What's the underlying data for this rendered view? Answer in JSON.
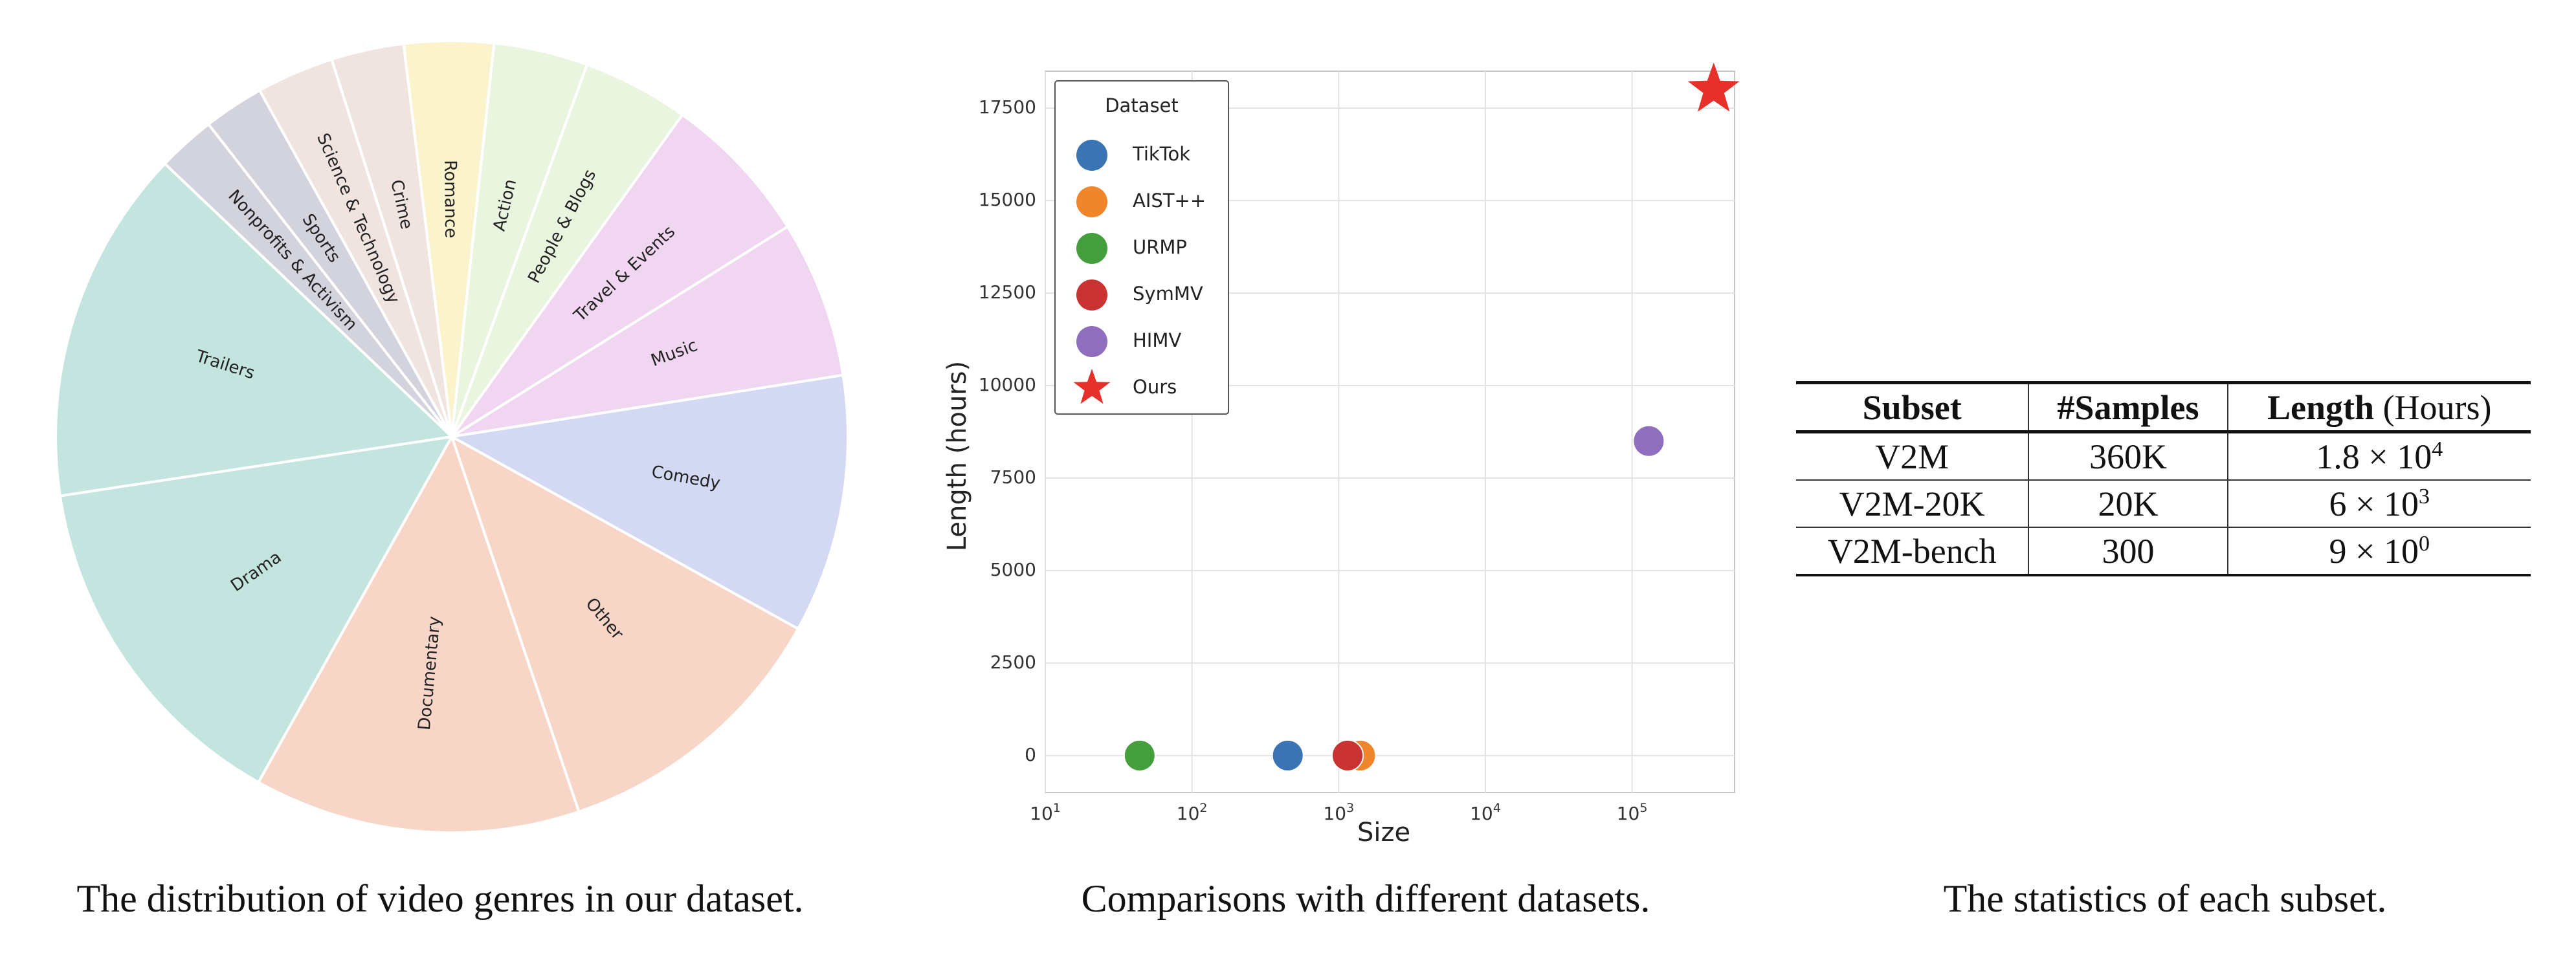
{
  "captions": {
    "left": "The distribution of video genres in our dataset.",
    "middle": "Comparisons with different datasets.",
    "right": "The statistics of each subset."
  },
  "chart_data": [
    {
      "type": "pie",
      "slices": [
        {
          "label": "Romance",
          "value": 3.7,
          "color": "#fbf3cc"
        },
        {
          "label": "Action",
          "value": 3.9,
          "color": "#eaf5df"
        },
        {
          "label": "People & Blogs",
          "value": 4.4,
          "color": "#eaf5df"
        },
        {
          "label": "Travel & Events",
          "value": 6.3,
          "color": "#f0d6f1"
        },
        {
          "label": "Music",
          "value": 6.5,
          "color": "#f0d6f1"
        },
        {
          "label": "Comedy",
          "value": 10.7,
          "color": "#d3d9f3"
        },
        {
          "label": "Other",
          "value": 11.9,
          "color": "#f7d6c8"
        },
        {
          "label": "Documentary",
          "value": 13.5,
          "color": "#f7d6c8"
        },
        {
          "label": "Drama",
          "value": 14.7,
          "color": "#c4e5df"
        },
        {
          "label": "Trailers",
          "value": 14.7,
          "color": "#c4e5df"
        },
        {
          "label": "Nonprofits & Activism",
          "value": 2.4,
          "color": "#d3d3de"
        },
        {
          "label": "Sports",
          "value": 2.5,
          "color": "#d3d3de"
        },
        {
          "label": "Science & Technology",
          "value": 3.2,
          "color": "#f0e4e1"
        },
        {
          "label": "Crime",
          "value": 3.0,
          "color": "#f0e4e1"
        }
      ]
    },
    {
      "type": "scatter",
      "xlabel": "Size",
      "ylabel": "Length (hours)",
      "xscale": "log",
      "xlim": [
        10,
        500000
      ],
      "ylim": [
        -1000,
        18500
      ],
      "xticks": [
        10,
        100,
        1000,
        10000,
        100000
      ],
      "yticks": [
        0,
        2500,
        5000,
        7500,
        10000,
        12500,
        15000,
        17500
      ],
      "grid": true,
      "legend": {
        "title": "Dataset",
        "position": "top-left"
      },
      "series": [
        {
          "name": "TikTok",
          "x": 450,
          "y": 0,
          "color": "#3a74b3",
          "marker": "circle"
        },
        {
          "name": "AIST++",
          "x": 1400,
          "y": 0,
          "color": "#f0862c",
          "marker": "circle"
        },
        {
          "name": "URMP",
          "x": 44,
          "y": 0,
          "color": "#449e3c",
          "marker": "circle"
        },
        {
          "name": "SymMV",
          "x": 1150,
          "y": 0,
          "color": "#c93432",
          "marker": "circle"
        },
        {
          "name": "HIMV",
          "x": 130000,
          "y": 8500,
          "color": "#8f6ebe",
          "marker": "circle"
        },
        {
          "name": "Ours",
          "x": 360000,
          "y": 18000,
          "color": "#e8302a",
          "marker": "star"
        }
      ]
    },
    {
      "type": "table",
      "columns": [
        {
          "bold": "Subset",
          "rest": ""
        },
        {
          "bold": "#Samples",
          "rest": ""
        },
        {
          "bold": "Length",
          "rest": " (Hours)"
        }
      ],
      "rows": [
        {
          "subset": "V2M",
          "samples": "360K",
          "mant": "1.8",
          "exp": "4"
        },
        {
          "subset": "V2M-20K",
          "samples": "20K",
          "mant": "6",
          "exp": "3"
        },
        {
          "subset": "V2M-bench",
          "samples": "300",
          "mant": "9",
          "exp": "0"
        }
      ]
    }
  ]
}
